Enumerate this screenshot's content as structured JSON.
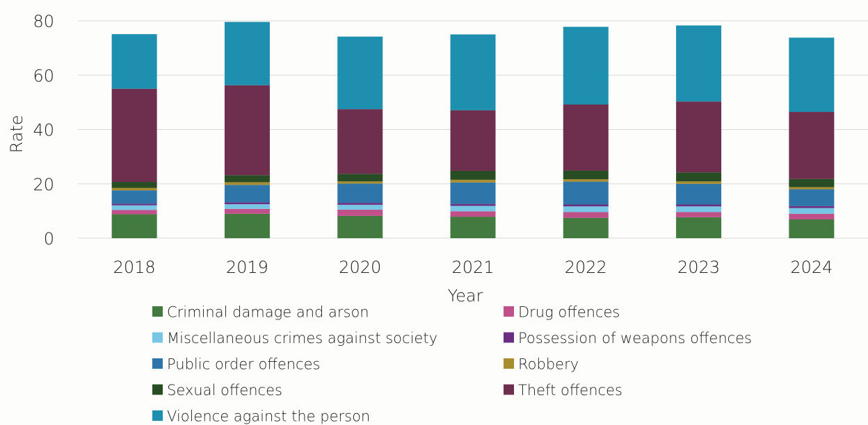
{
  "chart_data": {
    "type": "bar",
    "stacked": true,
    "xlabel": "Year",
    "ylabel": "Rate",
    "ylim": [
      0,
      80
    ],
    "yticks": [
      0,
      20,
      40,
      60,
      80
    ],
    "grid": "horizontal",
    "legend_position": "bottom",
    "categories": [
      "2018",
      "2019",
      "2020",
      "2021",
      "2022",
      "2023",
      "2024"
    ],
    "series": [
      {
        "name": "Criminal damage and arson",
        "color": "#427a3f",
        "values": [
          8.8,
          9.0,
          8.2,
          7.9,
          7.5,
          7.7,
          6.9
        ]
      },
      {
        "name": "Drug offences",
        "color": "#c0508a",
        "values": [
          1.6,
          1.8,
          2.3,
          2.0,
          2.1,
          1.9,
          2.1
        ]
      },
      {
        "name": "Miscellaneous crimes against society",
        "color": "#77c7e4",
        "values": [
          1.7,
          1.7,
          1.8,
          2.0,
          2.1,
          2.1,
          2.1
        ]
      },
      {
        "name": "Possession of weapons offences",
        "color": "#6a2f80",
        "values": [
          0.6,
          0.7,
          0.7,
          0.7,
          0.7,
          0.7,
          0.7
        ]
      },
      {
        "name": "Public order offences",
        "color": "#2e75aa",
        "values": [
          4.9,
          6.4,
          7.1,
          7.9,
          8.4,
          7.6,
          6.2
        ]
      },
      {
        "name": "Robbery",
        "color": "#a88c30",
        "values": [
          0.9,
          1.0,
          0.8,
          1.0,
          0.9,
          0.9,
          0.8
        ]
      },
      {
        "name": "Sexual offences",
        "color": "#284d25",
        "values": [
          2.2,
          2.6,
          2.8,
          3.3,
          3.2,
          3.3,
          3.0
        ]
      },
      {
        "name": "Theft offences",
        "color": "#6e2e4e",
        "values": [
          34.3,
          33.1,
          23.8,
          22.3,
          24.3,
          26.1,
          24.7
        ]
      },
      {
        "name": "Violence against the person",
        "color": "#1f8faf",
        "values": [
          20.1,
          23.3,
          26.7,
          27.9,
          28.6,
          28.0,
          27.3
        ]
      }
    ]
  }
}
